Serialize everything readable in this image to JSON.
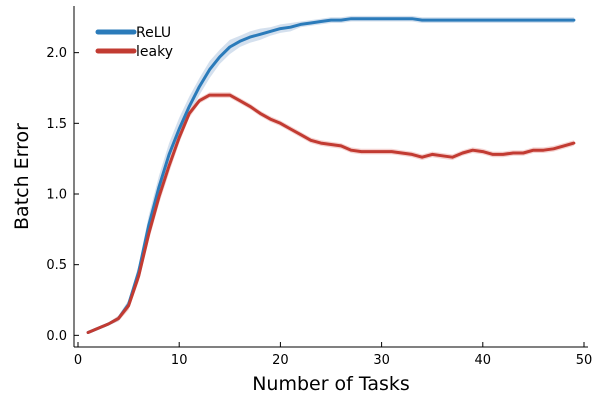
{
  "chart_data": {
    "type": "line",
    "xlabel": "Number of Tasks",
    "ylabel": "Batch Error",
    "xlim": [
      0,
      50
    ],
    "ylim": [
      0.0,
      2.3
    ],
    "xticks": [
      "0",
      "10",
      "20",
      "30",
      "40",
      "50"
    ],
    "yticks": [
      "0.0",
      "0.5",
      "1.0",
      "1.5",
      "2.0"
    ],
    "xtick_values": [
      0,
      10,
      20,
      30,
      40,
      50
    ],
    "ytick_values": [
      0.0,
      0.5,
      1.0,
      1.5,
      2.0
    ],
    "grid": false,
    "legend": "top-left",
    "x": [
      1,
      2,
      3,
      4,
      5,
      6,
      7,
      8,
      9,
      10,
      11,
      12,
      13,
      14,
      15,
      16,
      17,
      18,
      19,
      20,
      21,
      22,
      23,
      24,
      25,
      26,
      27,
      28,
      29,
      30,
      31,
      32,
      33,
      34,
      35,
      36,
      37,
      38,
      39,
      40,
      41,
      42,
      43,
      44,
      45,
      46,
      47,
      48,
      49
    ],
    "series": [
      {
        "name": "ReLU",
        "color": "#2b7bba",
        "band_color": "#c6d6e8",
        "values": [
          0.02,
          0.05,
          0.08,
          0.12,
          0.22,
          0.45,
          0.78,
          1.05,
          1.28,
          1.46,
          1.62,
          1.76,
          1.88,
          1.97,
          2.04,
          2.08,
          2.11,
          2.13,
          2.15,
          2.17,
          2.18,
          2.2,
          2.21,
          2.22,
          2.23,
          2.23,
          2.24,
          2.24,
          2.24,
          2.24,
          2.24,
          2.24,
          2.24,
          2.23,
          2.23,
          2.23,
          2.23,
          2.23,
          2.23,
          2.23,
          2.23,
          2.23,
          2.23,
          2.23,
          2.23,
          2.23,
          2.23,
          2.23,
          2.23
        ],
        "band": [
          0.01,
          0.01,
          0.01,
          0.02,
          0.03,
          0.05,
          0.07,
          0.08,
          0.08,
          0.08,
          0.07,
          0.06,
          0.06,
          0.05,
          0.05,
          0.04,
          0.04,
          0.04,
          0.03,
          0.03,
          0.03,
          0.02,
          0.02,
          0.02,
          0.02,
          0.02,
          0.02,
          0.02,
          0.02,
          0.02,
          0.02,
          0.02,
          0.02,
          0.02,
          0.02,
          0.02,
          0.02,
          0.02,
          0.02,
          0.02,
          0.02,
          0.02,
          0.02,
          0.02,
          0.02,
          0.02,
          0.02,
          0.02,
          0.02
        ]
      },
      {
        "name": "leaky",
        "color": "#c23b32",
        "band_color": "#f2c4c2",
        "values": [
          0.02,
          0.05,
          0.08,
          0.12,
          0.21,
          0.42,
          0.72,
          0.98,
          1.2,
          1.4,
          1.57,
          1.66,
          1.7,
          1.7,
          1.7,
          1.66,
          1.62,
          1.57,
          1.53,
          1.5,
          1.46,
          1.42,
          1.38,
          1.36,
          1.35,
          1.34,
          1.31,
          1.3,
          1.3,
          1.3,
          1.3,
          1.29,
          1.28,
          1.26,
          1.28,
          1.27,
          1.26,
          1.29,
          1.31,
          1.3,
          1.28,
          1.28,
          1.29,
          1.29,
          1.31,
          1.31,
          1.32,
          1.34,
          1.36
        ],
        "band": [
          0.01,
          0.01,
          0.01,
          0.02,
          0.03,
          0.04,
          0.05,
          0.05,
          0.05,
          0.04,
          0.03,
          0.02,
          0.02,
          0.02,
          0.02,
          0.02,
          0.02,
          0.02,
          0.02,
          0.02,
          0.02,
          0.02,
          0.02,
          0.02,
          0.02,
          0.02,
          0.02,
          0.02,
          0.02,
          0.02,
          0.02,
          0.02,
          0.02,
          0.02,
          0.02,
          0.02,
          0.02,
          0.02,
          0.02,
          0.02,
          0.02,
          0.02,
          0.02,
          0.02,
          0.02,
          0.02,
          0.02,
          0.02,
          0.02
        ]
      }
    ]
  }
}
